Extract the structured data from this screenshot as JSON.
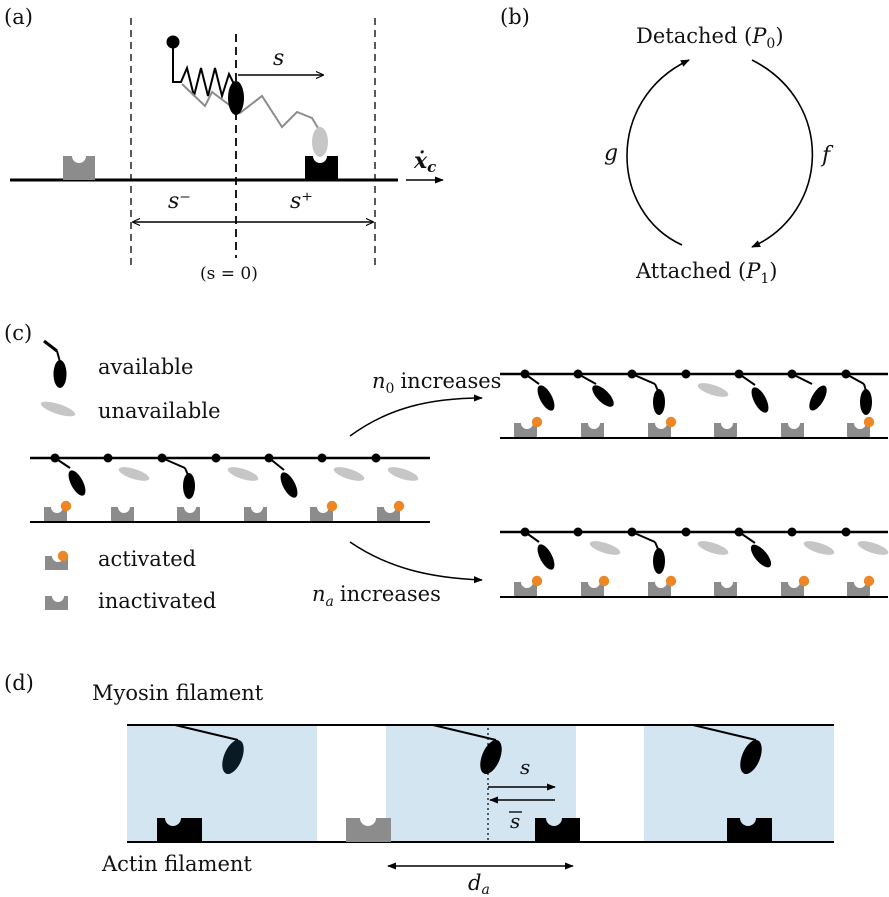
{
  "panels": {
    "a": {
      "label": "(a)",
      "s_arrow_label": "s",
      "s_minus": "s⁻",
      "s_plus": "s⁺",
      "origin_label": "(s = 0)",
      "velocity_label": "ẋ",
      "velocity_sub": "c"
    },
    "b": {
      "label": "(b)",
      "detached_label": "Detached (",
      "detached_var": "P",
      "detached_sub": "0",
      "attached_label": "Attached (",
      "attached_var": "P",
      "attached_sub": "1",
      "close_paren": ")",
      "rate_left": "g",
      "rate_right": "f"
    },
    "c": {
      "label": "(c)",
      "legend_available": "available",
      "legend_unavailable": "unavailable",
      "legend_activated": "activated",
      "legend_inactivated": "inactivated",
      "arrow_top_var": "n",
      "arrow_top_sub": "0",
      "arrow_top_text": "increases",
      "arrow_bottom_var": "n",
      "arrow_bottom_sub": "a",
      "arrow_bottom_text": "increases"
    },
    "d": {
      "label": "(d)",
      "myosin_label": "Myosin filament",
      "actin_label": "Actin filament",
      "s_label": "s",
      "s_bar_label": "s",
      "da_var": "d",
      "da_sub": "a"
    }
  },
  "colors": {
    "ink": "#000000",
    "gray_element": "#8c8c8c",
    "light_gray_head": "#c6c6c6",
    "activation_dot": "#ee8626",
    "shade": "#d3e5f0",
    "dark_head": "#0a1a24"
  }
}
